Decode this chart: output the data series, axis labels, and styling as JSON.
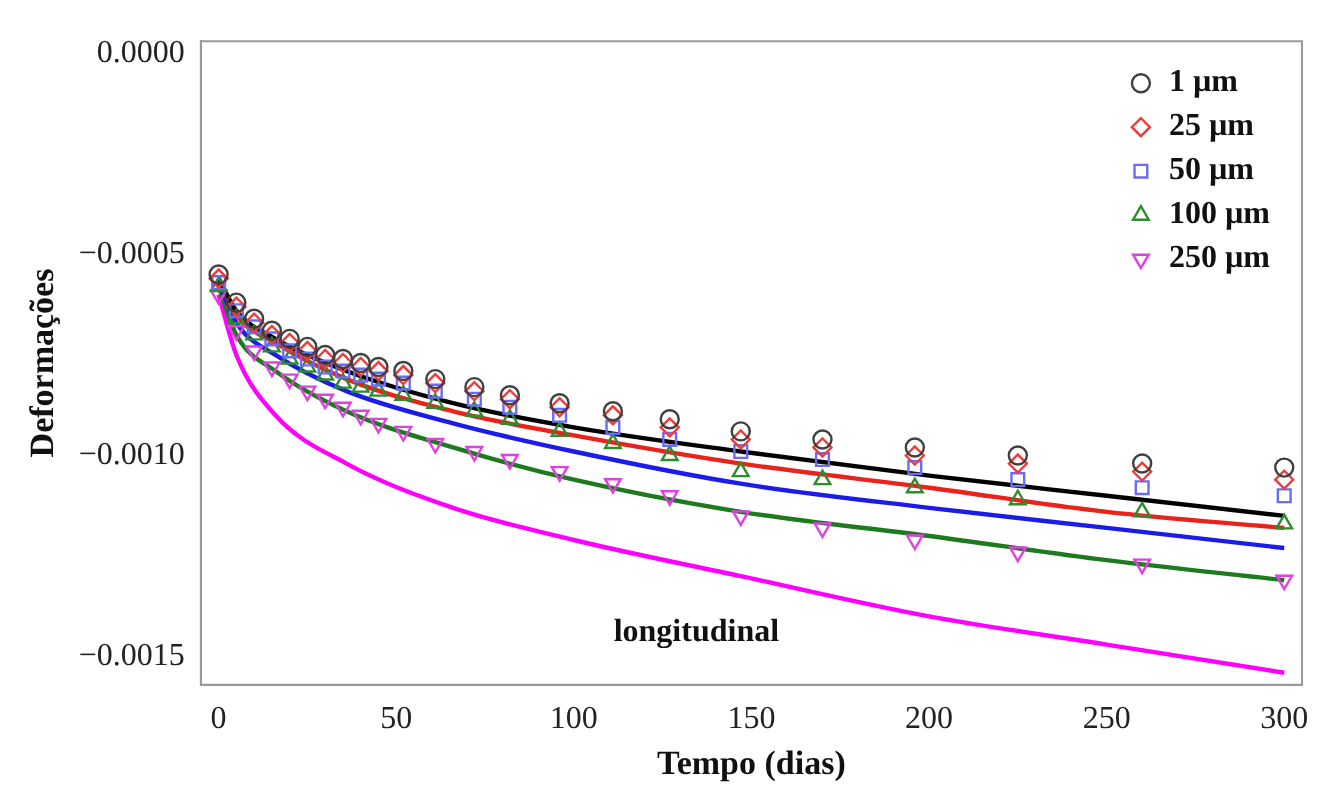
{
  "chart_data": {
    "type": "scatter",
    "xlabel": "Tempo (dias)",
    "ylabel": "Deformações",
    "annotations": [
      "longitudinal"
    ],
    "xlim": [
      -5,
      305
    ],
    "xticks": [
      0,
      50,
      100,
      150,
      200,
      250,
      300
    ],
    "ylim": [
      -0.00157,
      3e-05
    ],
    "yticks": [
      {
        "value": 0,
        "label": "0.0000"
      },
      {
        "value": -0.0005,
        "label": "−0.0005"
      },
      {
        "value": -0.001,
        "label": "−0.0010"
      },
      {
        "value": -0.0015,
        "label": "−0.0015"
      }
    ],
    "grid": false,
    "legend": "top right",
    "series": [
      {
        "name": "1 µm",
        "type": "scatter",
        "marker": "circle",
        "color": "#404040",
        "x": [
          0,
          5,
          10,
          15,
          20,
          25,
          30,
          35,
          40,
          45,
          52,
          61,
          72,
          82,
          96,
          111,
          127,
          147,
          170,
          196,
          225,
          260,
          300
        ],
        "values": [
          -0.00055,
          -0.00062,
          -0.00066,
          -0.00069,
          -0.00071,
          -0.00073,
          -0.00075,
          -0.00076,
          -0.00077,
          -0.00078,
          -0.00079,
          -0.00081,
          -0.00083,
          -0.00085,
          -0.00087,
          -0.00089,
          -0.00091,
          -0.00094,
          -0.00096,
          -0.00098,
          -0.001,
          -0.00102,
          -0.00103
        ]
      },
      {
        "name": "25 µm",
        "type": "scatter",
        "marker": "diamond",
        "color": "#ee3b3b",
        "x": [
          0,
          5,
          10,
          15,
          20,
          25,
          30,
          35,
          40,
          45,
          52,
          61,
          72,
          82,
          96,
          111,
          127,
          147,
          170,
          196,
          225,
          260,
          300
        ],
        "values": [
          -0.00056,
          -0.00063,
          -0.00067,
          -0.0007,
          -0.00072,
          -0.00074,
          -0.00076,
          -0.00077,
          -0.00078,
          -0.00079,
          -0.0008,
          -0.00082,
          -0.00084,
          -0.00086,
          -0.00088,
          -0.0009,
          -0.00093,
          -0.00096,
          -0.00098,
          -0.001,
          -0.00102,
          -0.00104,
          -0.00106
        ]
      },
      {
        "name": "50 µm",
        "type": "scatter",
        "marker": "square",
        "color": "#6b6bf5",
        "x": [
          0,
          5,
          10,
          15,
          20,
          25,
          30,
          35,
          40,
          45,
          52,
          61,
          72,
          82,
          96,
          111,
          127,
          147,
          170,
          196,
          225,
          260,
          300
        ],
        "values": [
          -0.00057,
          -0.00064,
          -0.00068,
          -0.00071,
          -0.00074,
          -0.00076,
          -0.00078,
          -0.00079,
          -0.0008,
          -0.00081,
          -0.00082,
          -0.00084,
          -0.00086,
          -0.00088,
          -0.0009,
          -0.00093,
          -0.00096,
          -0.00099,
          -0.00101,
          -0.00103,
          -0.00106,
          -0.00108,
          -0.0011
        ]
      },
      {
        "name": "100 µm",
        "type": "scatter",
        "marker": "triangle",
        "color": "#2e8b2e",
        "x": [
          0,
          5,
          10,
          15,
          20,
          25,
          30,
          35,
          40,
          45,
          52,
          61,
          72,
          82,
          96,
          111,
          127,
          147,
          170,
          196,
          225,
          260,
          300
        ],
        "values": [
          -0.00058,
          -0.00066,
          -0.0007,
          -0.00073,
          -0.00076,
          -0.00078,
          -0.0008,
          -0.00082,
          -0.00083,
          -0.00084,
          -0.00085,
          -0.00087,
          -0.00089,
          -0.00091,
          -0.00094,
          -0.00097,
          -0.001,
          -0.00104,
          -0.00106,
          -0.00108,
          -0.00111,
          -0.00114,
          -0.00117
        ]
      },
      {
        "name": "250 µm",
        "type": "scatter",
        "marker": "triangle_down",
        "color": "#e040e0",
        "x": [
          0,
          5,
          10,
          15,
          20,
          25,
          30,
          35,
          40,
          45,
          52,
          61,
          72,
          82,
          96,
          111,
          127,
          147,
          170,
          196,
          225,
          260,
          300
        ],
        "values": [
          -0.0006,
          -0.00069,
          -0.00074,
          -0.00078,
          -0.00081,
          -0.00084,
          -0.00086,
          -0.00088,
          -0.0009,
          -0.00092,
          -0.00094,
          -0.00097,
          -0.00099,
          -0.00101,
          -0.00104,
          -0.00107,
          -0.0011,
          -0.00115,
          -0.00118,
          -0.00121,
          -0.00124,
          -0.00127,
          -0.00131
        ]
      },
      {
        "type": "line",
        "marker": "none",
        "line_style": "solid",
        "color": "#000000",
        "x": [
          0,
          5,
          16,
          36,
          66,
          100,
          147,
          200,
          250,
          300
        ],
        "values": [
          -0.00056,
          -0.00064,
          -0.00071,
          -0.00079,
          -0.00087,
          -0.00093,
          -0.00099,
          -0.00105,
          -0.0011,
          -0.00115
        ]
      },
      {
        "type": "line",
        "marker": "none",
        "line_style": "solid",
        "color": "#e8231c",
        "x": [
          0,
          5,
          16,
          36,
          66,
          100,
          147,
          200,
          250,
          300
        ],
        "values": [
          -0.00056,
          -0.00065,
          -0.00072,
          -0.00081,
          -0.00089,
          -0.00095,
          -0.00102,
          -0.00108,
          -0.00114,
          -0.00118
        ]
      },
      {
        "type": "line",
        "marker": "none",
        "line_style": "solid",
        "color": "#1c1ce8",
        "x": [
          0,
          5,
          16,
          36,
          66,
          100,
          147,
          200,
          250,
          300
        ],
        "values": [
          -0.00057,
          -0.00067,
          -0.00075,
          -0.00084,
          -0.00092,
          -0.00099,
          -0.00107,
          -0.00113,
          -0.00118,
          -0.00123
        ]
      },
      {
        "type": "line",
        "marker": "none",
        "line_style": "solid",
        "color": "#1e7a1e",
        "x": [
          0,
          5,
          16,
          36,
          66,
          100,
          147,
          200,
          250,
          300
        ],
        "values": [
          -0.00058,
          -0.0007,
          -0.00079,
          -0.00089,
          -0.00098,
          -0.00106,
          -0.00114,
          -0.0012,
          -0.00126,
          -0.00131
        ]
      },
      {
        "type": "line",
        "marker": "none",
        "line_style": "solid",
        "color": "#ff00ff",
        "x": [
          0,
          5,
          16,
          36,
          66,
          100,
          147,
          200,
          250,
          300
        ],
        "values": [
          -0.0006,
          -0.00075,
          -0.0009,
          -0.00102,
          -0.00113,
          -0.00121,
          -0.0013,
          -0.0014,
          -0.00147,
          -0.00154
        ]
      }
    ]
  }
}
